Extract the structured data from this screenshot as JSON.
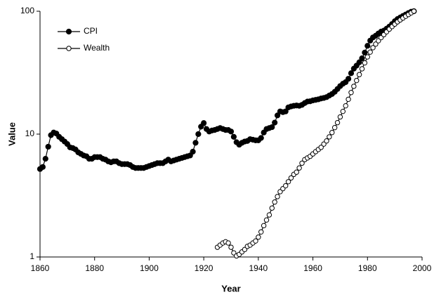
{
  "chart_data": {
    "type": "line",
    "x_label": "Year",
    "y_label": "Value",
    "log_y": true,
    "legend": "top-left",
    "xlim": [
      1860,
      2000
    ],
    "xticks": [
      1860,
      1880,
      1900,
      1920,
      1940,
      1960,
      1980,
      2000
    ],
    "ylim": [
      1,
      100
    ],
    "yticks": [
      1,
      10,
      100
    ],
    "series": [
      {
        "name": "CPI",
        "color": "#000000",
        "marker": "filled",
        "x": [
          1860,
          1861,
          1862,
          1863,
          1864,
          1865,
          1866,
          1867,
          1868,
          1869,
          1870,
          1871,
          1872,
          1873,
          1874,
          1875,
          1876,
          1877,
          1878,
          1879,
          1880,
          1881,
          1882,
          1883,
          1884,
          1885,
          1886,
          1887,
          1888,
          1889,
          1890,
          1891,
          1892,
          1893,
          1894,
          1895,
          1896,
          1897,
          1898,
          1899,
          1900,
          1901,
          1902,
          1903,
          1904,
          1905,
          1906,
          1907,
          1908,
          1909,
          1910,
          1911,
          1912,
          1913,
          1914,
          1915,
          1916,
          1917,
          1918,
          1919,
          1920,
          1921,
          1922,
          1923,
          1924,
          1925,
          1926,
          1927,
          1928,
          1929,
          1930,
          1931,
          1932,
          1933,
          1934,
          1935,
          1936,
          1937,
          1938,
          1939,
          1940,
          1941,
          1942,
          1943,
          1944,
          1945,
          1946,
          1947,
          1948,
          1949,
          1950,
          1951,
          1952,
          1953,
          1954,
          1955,
          1956,
          1957,
          1958,
          1959,
          1960,
          1961,
          1962,
          1963,
          1964,
          1965,
          1966,
          1967,
          1968,
          1969,
          1970,
          1971,
          1972,
          1973,
          1974,
          1975,
          1976,
          1977,
          1978,
          1979,
          1980,
          1981,
          1982,
          1983,
          1984,
          1985,
          1986,
          1987,
          1988,
          1989,
          1990,
          1991,
          1992,
          1993,
          1994,
          1995,
          1996,
          1997
        ],
        "values": [
          5.2,
          5.4,
          6.3,
          7.9,
          9.8,
          10.3,
          10.1,
          9.5,
          9.1,
          8.7,
          8.3,
          7.8,
          7.7,
          7.5,
          7.1,
          6.9,
          6.7,
          6.6,
          6.3,
          6.3,
          6.5,
          6.5,
          6.5,
          6.3,
          6.2,
          6.0,
          5.9,
          6.0,
          6.0,
          5.8,
          5.7,
          5.7,
          5.7,
          5.6,
          5.4,
          5.3,
          5.3,
          5.3,
          5.3,
          5.4,
          5.5,
          5.6,
          5.7,
          5.8,
          5.8,
          5.8,
          6.0,
          6.2,
          6.0,
          6.1,
          6.2,
          6.3,
          6.4,
          6.5,
          6.6,
          6.7,
          7.2,
          8.5,
          10.0,
          11.5,
          12.3,
          11.0,
          10.5,
          10.7,
          10.8,
          11.0,
          11.2,
          11.0,
          10.8,
          10.8,
          10.5,
          9.5,
          8.6,
          8.2,
          8.5,
          8.7,
          8.8,
          9.1,
          9.0,
          8.9,
          8.9,
          9.3,
          10.3,
          11.0,
          11.2,
          11.4,
          12.4,
          14.2,
          15.3,
          15.1,
          15.3,
          16.5,
          16.8,
          17.0,
          17.1,
          17.0,
          17.3,
          17.9,
          18.4,
          18.5,
          18.8,
          19.0,
          19.2,
          19.5,
          19.7,
          20.0,
          20.6,
          21.2,
          22.1,
          23.3,
          24.6,
          25.7,
          26.5,
          28.2,
          31.3,
          34.1,
          36.1,
          38.4,
          41.4,
          46.1,
          52.3,
          57.7,
          61.2,
          63.2,
          65.9,
          68.3,
          69.5,
          72.1,
          75.0,
          78.7,
          82.9,
          86.4,
          89.0,
          91.6,
          94.0,
          96.7,
          99.0,
          100
        ]
      },
      {
        "name": "Wealth",
        "color": "#000000",
        "marker": "open",
        "x": [
          1925,
          1926,
          1927,
          1928,
          1929,
          1930,
          1931,
          1932,
          1933,
          1934,
          1935,
          1936,
          1937,
          1938,
          1939,
          1940,
          1941,
          1942,
          1943,
          1944,
          1945,
          1946,
          1947,
          1948,
          1949,
          1950,
          1951,
          1952,
          1953,
          1954,
          1955,
          1956,
          1957,
          1958,
          1959,
          1960,
          1961,
          1962,
          1963,
          1964,
          1965,
          1966,
          1967,
          1968,
          1969,
          1970,
          1971,
          1972,
          1973,
          1974,
          1975,
          1976,
          1977,
          1978,
          1979,
          1980,
          1981,
          1982,
          1983,
          1984,
          1985,
          1986,
          1987,
          1988,
          1989,
          1990,
          1991,
          1992,
          1993,
          1994,
          1995,
          1996,
          1997
        ],
        "values": [
          1.2,
          1.25,
          1.3,
          1.33,
          1.3,
          1.2,
          1.08,
          1.02,
          1.05,
          1.1,
          1.15,
          1.22,
          1.25,
          1.3,
          1.35,
          1.45,
          1.6,
          1.8,
          2.0,
          2.2,
          2.5,
          2.8,
          3.1,
          3.4,
          3.6,
          3.8,
          4.1,
          4.4,
          4.7,
          4.9,
          5.3,
          5.8,
          6.2,
          6.4,
          6.6,
          6.9,
          7.2,
          7.5,
          7.8,
          8.3,
          8.8,
          9.5,
          10.3,
          11.3,
          12.4,
          13.8,
          15.3,
          17.0,
          19.2,
          21.8,
          24.5,
          27.3,
          30.5,
          34.0,
          38.0,
          42.5,
          46.5,
          50.5,
          54.0,
          57.5,
          61.0,
          64.5,
          68.0,
          71.5,
          75.0,
          78.5,
          82.0,
          85.0,
          88.0,
          91.0,
          94.0,
          97.0,
          100
        ]
      }
    ]
  }
}
